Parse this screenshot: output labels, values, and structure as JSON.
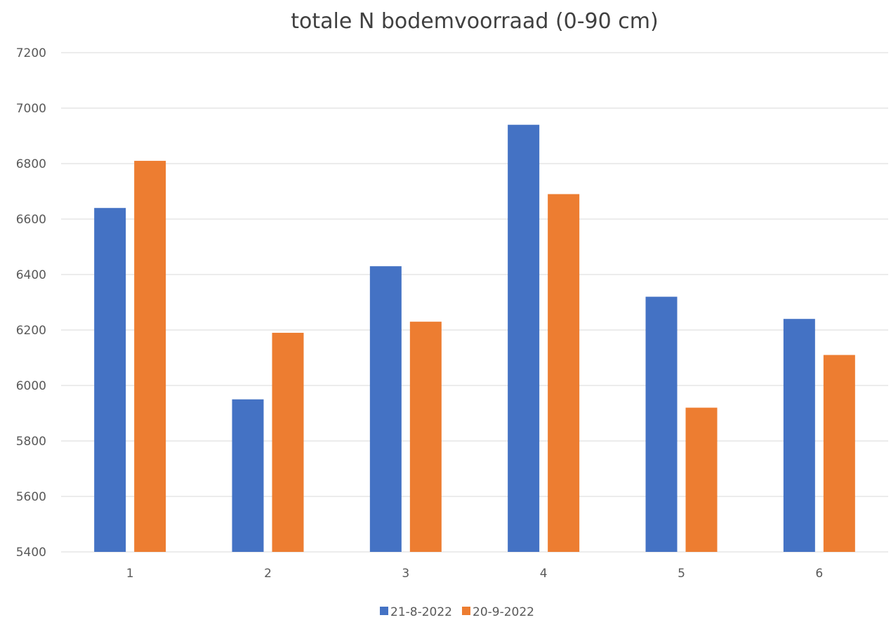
{
  "chart_data": {
    "type": "bar",
    "title": "totale N bodemvoorraad (0-90 cm)",
    "xlabel": "",
    "ylabel": "",
    "categories": [
      "1",
      "2",
      "3",
      "4",
      "5",
      "6"
    ],
    "series": [
      {
        "name": "21-8-2022",
        "color": "#4472c4",
        "values": [
          6640,
          5950,
          6430,
          6940,
          6320,
          6240
        ]
      },
      {
        "name": "20-9-2022",
        "color": "#ed7d31",
        "values": [
          6810,
          6190,
          6230,
          6690,
          5920,
          6110
        ]
      }
    ],
    "ylim": [
      5400,
      7200
    ],
    "yticks": [
      "5400",
      "5600",
      "5800",
      "6000",
      "6200",
      "6400",
      "6600",
      "6800",
      "7000",
      "7200"
    ],
    "grid": true,
    "legend": "bottom"
  }
}
